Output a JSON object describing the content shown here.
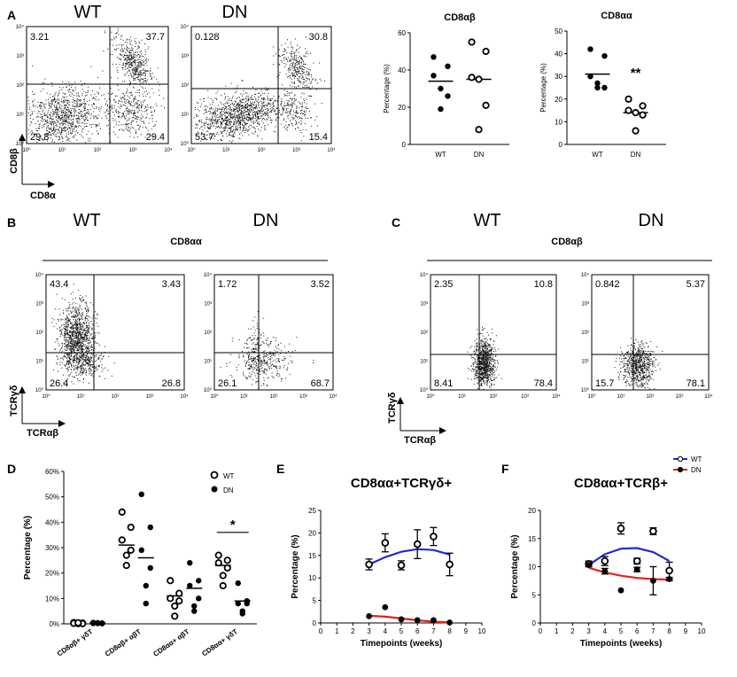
{
  "panels": {
    "A": "A",
    "B": "B",
    "C": "C",
    "D": "D",
    "E": "E",
    "F": "F"
  },
  "flow_axis_ticks": [
    "10⁰",
    "10¹",
    "10²",
    "10³",
    "10⁴"
  ],
  "flow_A": {
    "wt_label": "WT",
    "dn_label": "DN",
    "y_axis": "CD8β",
    "x_axis": "CD8α",
    "wt_quadrants": {
      "ul": "3.21",
      "ur": "37.7",
      "ll": "29.8",
      "lr": "29.4"
    },
    "dn_quadrants": {
      "ul": "0.128",
      "ur": "30.8",
      "ll": "53.7",
      "lr": "15.4"
    }
  },
  "flow_B": {
    "wt_label": "WT",
    "dn_label": "DN",
    "subset": "CD8αα",
    "y_axis": "TCRγδ",
    "x_axis": "TCRαβ",
    "wt_quadrants": {
      "ul": "43.4",
      "ur": "3.43",
      "ll": "26.4",
      "lr": "26.8"
    },
    "dn_quadrants": {
      "ul": "1.72",
      "ur": "3.52",
      "ll": "26.1",
      "lr": "68.7"
    }
  },
  "flow_C": {
    "wt_label": "WT",
    "dn_label": "DN",
    "subset": "CD8αβ",
    "y_axis": "TCRγδ",
    "x_axis": "TCRαβ",
    "wt_quadrants": {
      "ul": "2.35",
      "ur": "10.8",
      "ll": "8.41",
      "lr": "78.4"
    },
    "dn_quadrants": {
      "ul": "0.842",
      "ur": "5.37",
      "ll": "15.7",
      "lr": "78.1"
    }
  },
  "chart_data": [
    {
      "id": "A-cd8ab",
      "type": "scatter",
      "title": "CD8αβ",
      "ylabel": "Percentage (%)",
      "xlabel": "",
      "ylim": [
        0,
        60
      ],
      "yticks": [
        0,
        20,
        40,
        60
      ],
      "categories": [
        "WT",
        "DN"
      ],
      "series": [
        {
          "name": "WT",
          "marker": "filled",
          "values": [
            47,
            42,
            37,
            30,
            26,
            19
          ],
          "mean": 34
        },
        {
          "name": "DN",
          "marker": "open",
          "values": [
            55,
            50,
            36,
            35,
            21,
            8
          ],
          "mean": 35
        }
      ]
    },
    {
      "id": "A-cd8aa",
      "type": "scatter",
      "title": "CD8αα",
      "ylabel": "Percentage (%)",
      "xlabel": "",
      "ylim": [
        0,
        50
      ],
      "yticks": [
        0,
        10,
        20,
        30,
        40,
        50
      ],
      "categories": [
        "WT",
        "DN"
      ],
      "annotation": "**",
      "series": [
        {
          "name": "WT",
          "marker": "filled",
          "values": [
            42,
            39,
            30,
            27,
            25,
            25
          ],
          "mean": 31
        },
        {
          "name": "DN",
          "marker": "open",
          "values": [
            20,
            17,
            15,
            14,
            13,
            6
          ],
          "mean": 14
        }
      ]
    },
    {
      "id": "D",
      "type": "scatter",
      "title": "",
      "ylabel": "Percentage (%)",
      "xlabel": "",
      "ylim": [
        0,
        60
      ],
      "yticks": [
        0,
        10,
        20,
        30,
        40,
        50,
        60
      ],
      "ytick_labels": [
        "0%",
        "10%",
        "20%",
        "30%",
        "40%",
        "50%",
        "60%"
      ],
      "categories": [
        "CD8αβ+ γδT",
        "CD8αβ+ αβT",
        "CD8αα+ αβT",
        "CD8αα+ γδT"
      ],
      "legend": [
        {
          "name": "WT",
          "marker": "open"
        },
        {
          "name": "DN",
          "marker": "filled"
        }
      ],
      "annotation": "*",
      "series": [
        {
          "name": "WT",
          "marker": "open",
          "groups": [
            [
              0.5,
              0.3,
              0.2,
              0.1,
              0.1,
              0.4
            ],
            [
              44,
              38,
              33,
              29,
              27,
              23
            ],
            [
              17,
              12,
              10,
              9,
              7,
              3
            ],
            [
              27,
              25,
              24,
              22,
              19,
              15
            ]
          ],
          "means": [
            0.3,
            31,
            11,
            23
          ]
        },
        {
          "name": "DN",
          "marker": "filled",
          "groups": [
            [
              0.5,
              0.3,
              0.2,
              0.1,
              0.4,
              0.2
            ],
            [
              51,
              38,
              29,
              22,
              15,
              8
            ],
            [
              24,
              17,
              15,
              10,
              7,
              5
            ],
            [
              16,
              9,
              8,
              8,
              5,
              4
            ]
          ],
          "means": [
            0.3,
            26,
            14,
            9
          ]
        }
      ]
    },
    {
      "id": "E",
      "type": "line",
      "title": "CD8αα+TCRγδ+",
      "xlabel": "Timepoints (weeks)",
      "ylabel": "Percentage (%)",
      "xlim": [
        0,
        10
      ],
      "ylim": [
        0,
        25
      ],
      "xticks": [
        0,
        1,
        2,
        3,
        4,
        5,
        6,
        7,
        8,
        9,
        10
      ],
      "yticks": [
        0,
        5,
        10,
        15,
        20,
        25
      ],
      "series": [
        {
          "name": "WT",
          "color": "#1f2bd6",
          "marker": "open",
          "x": [
            3,
            4,
            5,
            6,
            7,
            8
          ],
          "y": [
            13,
            17.8,
            12.8,
            17.5,
            19.2,
            13
          ],
          "err": [
            1.2,
            2,
            1,
            3.2,
            2,
            2.5
          ],
          "fit_x": [
            3,
            4,
            5,
            6,
            7,
            8
          ],
          "fit_y": [
            13.0,
            14.6,
            15.8,
            16.4,
            16.2,
            15.2
          ]
        },
        {
          "name": "DN",
          "color": "#e8201a",
          "marker": "filled",
          "x": [
            3,
            4,
            5,
            6,
            7,
            8
          ],
          "y": [
            1.5,
            3.5,
            0.8,
            0.6,
            0.6,
            0.1
          ],
          "err": [
            0,
            0,
            0,
            0,
            0,
            0
          ],
          "fit_x": [
            3,
            4,
            5,
            6,
            7,
            8
          ],
          "fit_y": [
            1.6,
            1.4,
            1.0,
            0.6,
            0.3,
            0.1
          ]
        }
      ]
    },
    {
      "id": "F",
      "type": "line",
      "title": "CD8αα+TCRβ+",
      "xlabel": "Timepoints (weeks)",
      "ylabel": "Percentage (%)",
      "xlim": [
        0,
        10
      ],
      "ylim": [
        0,
        20
      ],
      "xticks": [
        0,
        1,
        2,
        3,
        4,
        5,
        6,
        7,
        8,
        9,
        10
      ],
      "yticks": [
        0,
        5,
        10,
        15,
        20
      ],
      "legend": [
        {
          "name": "WT",
          "color": "#1f2bd6"
        },
        {
          "name": "DN",
          "color": "#e8201a"
        }
      ],
      "series": [
        {
          "name": "WT",
          "color": "#1f2bd6",
          "marker": "open",
          "x": [
            3,
            4,
            5,
            6,
            7,
            8
          ],
          "y": [
            10.5,
            11,
            16.8,
            11,
            16.3,
            9.3
          ],
          "err": [
            0.5,
            0.8,
            1,
            0.5,
            0.6,
            1.5
          ],
          "fit_x": [
            3,
            4,
            5,
            6,
            7,
            8
          ],
          "fit_y": [
            10.3,
            12.2,
            13.2,
            13.3,
            12.6,
            11.0
          ]
        },
        {
          "name": "DN",
          "color": "#e8201a",
          "marker": "filled",
          "x": [
            3,
            4,
            5,
            6,
            7,
            8
          ],
          "y": [
            10.3,
            9.2,
            5.8,
            9.5,
            7.5,
            7.8
          ],
          "err": [
            0.3,
            0.5,
            0,
            0.4,
            2.5,
            0.3
          ],
          "fit_x": [
            3,
            4,
            5,
            6,
            7,
            8
          ],
          "fit_y": [
            9.8,
            9.0,
            8.4,
            8.0,
            7.8,
            7.7
          ]
        }
      ]
    }
  ]
}
